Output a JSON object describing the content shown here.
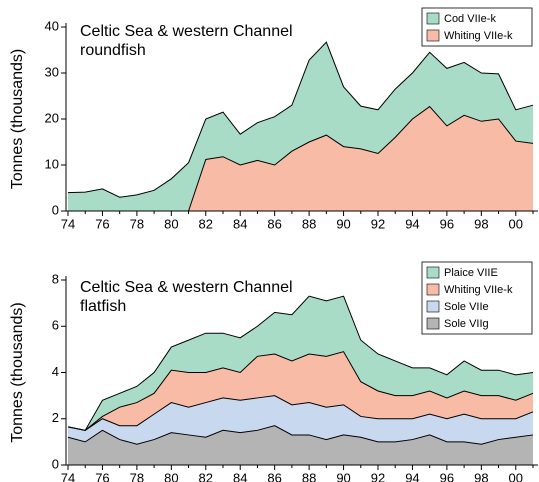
{
  "chart_data": [
    {
      "type": "stacked-area",
      "title": "Celtic Sea & western Channel",
      "subtitle": "roundfish",
      "ylabel": "Tonnes (thousands)",
      "categories": [
        "74",
        null,
        "76",
        null,
        "78",
        null,
        "80",
        null,
        "82",
        null,
        "84",
        null,
        "86",
        null,
        "88",
        null,
        "90",
        null,
        "92",
        null,
        "94",
        null,
        "96",
        null,
        "98",
        null,
        "00",
        null
      ],
      "series": [
        {
          "name": "Cod VIIe-k",
          "color": "#a9dcc7",
          "values": [
            4,
            4.1,
            4.8,
            3,
            3.5,
            4.5,
            7,
            10.5,
            8.8,
            9.7,
            6.7,
            8.2,
            10.5,
            10,
            17.8,
            20.2,
            13,
            9.3,
            9.5,
            10.5,
            10,
            11.8,
            12.5,
            11.5,
            10.5,
            9.8,
            6.8,
            8.3
          ]
        },
        {
          "name": "Whiting VIIe-k",
          "color": "#f8bba5",
          "values": [
            0,
            0,
            0,
            0,
            0,
            0,
            0,
            0,
            11.2,
            11.8,
            10,
            11,
            10,
            13,
            15,
            16.5,
            14,
            13.5,
            12.5,
            16,
            20,
            22.7,
            18.5,
            20.8,
            19.5,
            20,
            15.2,
            14.7
          ]
        }
      ],
      "ylim": [
        0,
        40
      ],
      "yticks": [
        0,
        10,
        20,
        30,
        40
      ],
      "legend": "upper right"
    },
    {
      "type": "stacked-area",
      "title": "Celtic Sea & western Channel",
      "subtitle": "flatfish",
      "ylabel": "Tonnes (thousands)",
      "categories": [
        "74",
        null,
        "76",
        null,
        "78",
        null,
        "80",
        null,
        "82",
        null,
        "84",
        null,
        "86",
        null,
        "88",
        null,
        "90",
        null,
        "92",
        null,
        "94",
        null,
        "96",
        null,
        "98",
        null,
        "00",
        null
      ],
      "series": [
        {
          "name": "Plaice VIIE",
          "color": "#a9dcc7",
          "values": [
            0,
            0,
            0.7,
            0.6,
            0.7,
            0.9,
            1.0,
            1.4,
            1.7,
            1.5,
            1.5,
            1.3,
            1.8,
            2.0,
            2.5,
            2.4,
            2.4,
            1.8,
            1.6,
            1.5,
            1.2,
            1.0,
            1.0,
            1.3,
            1.1,
            1.1,
            1.1,
            0.9
          ]
        },
        {
          "name": "Whiting VIIe-k",
          "color": "#f8bba5",
          "values": [
            0,
            0,
            0.1,
            0.8,
            1.0,
            0.9,
            1.4,
            1.5,
            1.3,
            1.3,
            1.2,
            1.8,
            1.8,
            1.9,
            2.1,
            2.2,
            2.3,
            1.5,
            1.2,
            1.0,
            1.0,
            1.0,
            0.9,
            1.0,
            1.0,
            1.0,
            0.8,
            0.8
          ]
        },
        {
          "name": "Sole VIIe",
          "color": "#c7d8ef",
          "values": [
            0.45,
            0.5,
            0.5,
            0.6,
            0.8,
            1.1,
            1.3,
            1.2,
            1.5,
            1.4,
            1.4,
            1.4,
            1.3,
            1.3,
            1.4,
            1.4,
            1.3,
            0.9,
            1.0,
            1.0,
            0.9,
            0.9,
            1.0,
            1.2,
            1.1,
            0.9,
            0.8,
            1.0
          ]
        },
        {
          "name": "Sole VIIg",
          "color": "#b4b4b4",
          "values": [
            1.2,
            1.0,
            1.5,
            1.1,
            0.9,
            1.1,
            1.4,
            1.3,
            1.2,
            1.5,
            1.4,
            1.5,
            1.7,
            1.3,
            1.3,
            1.1,
            1.3,
            1.2,
            1.0,
            1.0,
            1.1,
            1.3,
            1.0,
            1.0,
            0.9,
            1.1,
            1.2,
            1.3
          ]
        }
      ],
      "ylim": [
        0,
        8
      ],
      "yticks": [
        0,
        2,
        4,
        6,
        8
      ],
      "legend": "upper right"
    }
  ]
}
